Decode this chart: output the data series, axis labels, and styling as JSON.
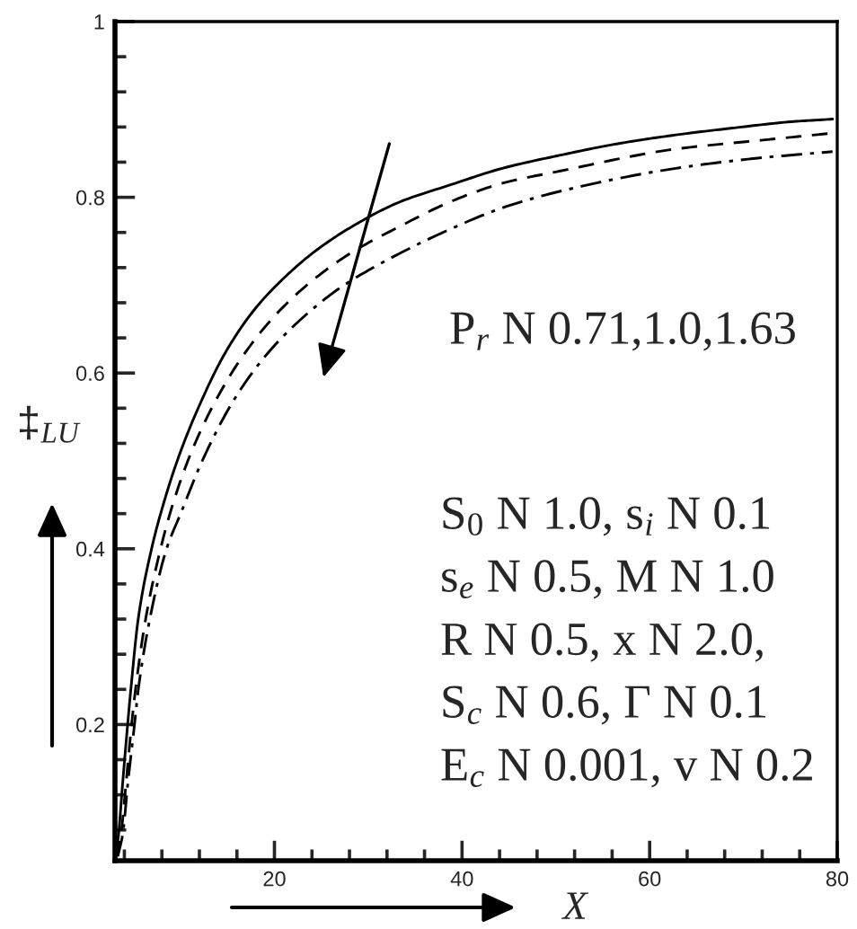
{
  "chart_data": {
    "type": "line",
    "xlabel": "X",
    "ylabel": "‡$_{LU}$",
    "xlim": [
      3,
      80
    ],
    "ylim": [
      0.045,
      1
    ],
    "xticks": [
      {
        "value": 4,
        "label": null
      },
      {
        "value": 8,
        "label": null
      },
      {
        "value": 12,
        "label": null
      },
      {
        "value": 16,
        "label": null
      },
      20,
      {
        "value": 24,
        "label": null
      },
      {
        "value": 28,
        "label": null
      },
      {
        "value": 32,
        "label": null
      },
      {
        "value": 36,
        "label": null
      },
      40,
      {
        "value": 44,
        "label": null
      },
      {
        "value": 48,
        "label": null
      },
      {
        "value": 52,
        "label": null
      },
      {
        "value": 56,
        "label": null
      },
      60,
      {
        "value": 64,
        "label": null
      },
      {
        "value": 68,
        "label": null
      },
      {
        "value": 72,
        "label": null
      },
      {
        "value": 76,
        "label": null
      },
      80
    ],
    "yticks": [
      {
        "value": 0.08,
        "label": null
      },
      {
        "value": 0.12,
        "label": null
      },
      {
        "value": 0.16,
        "label": null
      },
      0.2,
      {
        "value": 0.24,
        "label": null
      },
      {
        "value": 0.28,
        "label": null
      },
      {
        "value": 0.32,
        "label": null
      },
      {
        "value": 0.36,
        "label": null
      },
      0.4,
      {
        "value": 0.44,
        "label": null
      },
      {
        "value": 0.48,
        "label": null
      },
      {
        "value": 0.52,
        "label": null
      },
      {
        "value": 0.56,
        "label": null
      },
      0.6,
      {
        "value": 0.64,
        "label": null
      },
      {
        "value": 0.68,
        "label": null
      },
      {
        "value": 0.72,
        "label": null
      },
      {
        "value": 0.76,
        "label": null
      },
      0.8,
      {
        "value": 0.84,
        "label": null
      },
      {
        "value": 0.88,
        "label": null
      },
      {
        "value": 0.92,
        "label": null
      },
      {
        "value": 0.96,
        "label": null
      },
      1
    ],
    "series": [
      {
        "color": "#000000",
        "line_style": "solid",
        "x": [
          3.1,
          3.4,
          3.8,
          4.35,
          4.7,
          5.5,
          6.9,
          8.0,
          9.8,
          12.2,
          14.7,
          17.7,
          20.8,
          24.5,
          28.8,
          33.2,
          39.0,
          44.3,
          50.5,
          56.6,
          62.8,
          69.0,
          75.1,
          79.5
        ],
        "values": [
          0.05,
          0.077,
          0.131,
          0.2,
          0.241,
          0.322,
          0.4,
          0.445,
          0.505,
          0.568,
          0.622,
          0.67,
          0.706,
          0.74,
          0.77,
          0.794,
          0.815,
          0.833,
          0.848,
          0.861,
          0.871,
          0.879,
          0.886,
          0.889
        ]
      },
      {
        "color": "#000000",
        "line_style": "dashed",
        "x": [
          3.2,
          3.66,
          4.16,
          4.77,
          5.2,
          6.3,
          7.86,
          9.0,
          10.95,
          13.7,
          16.8,
          20.2,
          23.9,
          28.2,
          33.2,
          39.0,
          44.3,
          50.5,
          62.8,
          71.0,
          79.5
        ],
        "values": [
          0.05,
          0.077,
          0.131,
          0.2,
          0.241,
          0.322,
          0.4,
          0.445,
          0.505,
          0.568,
          0.622,
          0.667,
          0.704,
          0.737,
          0.766,
          0.796,
          0.816,
          0.83,
          0.855,
          0.864,
          0.873
        ]
      },
      {
        "color": "#000000",
        "line_style": "dashdot",
        "x": [
          3.3,
          3.85,
          4.35,
          5.08,
          5.5,
          6.75,
          8.5,
          10.0,
          12.3,
          15.6,
          19.0,
          22.7,
          27.0,
          31.9,
          39.0,
          44.3,
          50.5,
          62.8,
          71.0,
          79.5
        ],
        "values": [
          0.05,
          0.077,
          0.131,
          0.2,
          0.241,
          0.322,
          0.4,
          0.44,
          0.5,
          0.568,
          0.619,
          0.66,
          0.697,
          0.728,
          0.765,
          0.788,
          0.807,
          0.833,
          0.844,
          0.852
        ]
      }
    ],
    "annotations": [
      "P$_{r}$ N 0.71,1.0,1.63",
      "S$_{0}$ N 1.0, s$_{i}$ N 0.1",
      "s$_{e}$ N 0.5, M N 1.0",
      "R N 0.5, x N 2.0,",
      "S$_{c}$ N 0.6, Γ N 0.1",
      "E$_{c}$ N 0.001, v N 0.2"
    ]
  }
}
